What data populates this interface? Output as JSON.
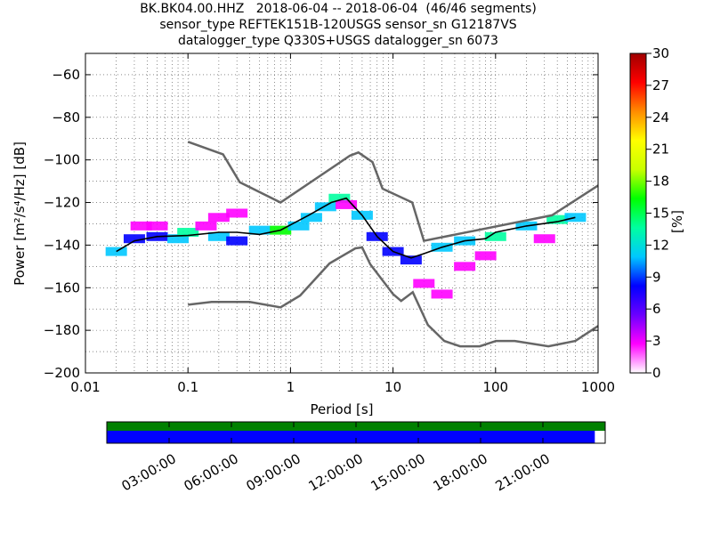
{
  "title": {
    "line1": "BK.BK04.00.HHZ   2018-06-04 -- 2018-06-04  (46/46 segments)",
    "line2": "sensor_type REFTEK151B-120USGS sensor_sn G12187VS",
    "line3": "datalogger_type Q330S+USGS datalogger_sn 6073"
  },
  "chart_data": [
    {
      "type": "heatmap",
      "xlabel": "Period [s]",
      "ylabel": "Power [m²/s⁴/Hz] [dB]",
      "xscale": "log",
      "xlim": [
        0.01,
        1000
      ],
      "ylim": [
        -200,
        -50
      ],
      "x_ticks": [
        "0.01",
        "0.1",
        "1",
        "10",
        "100",
        "1000"
      ],
      "y_ticks": [
        "−60",
        "−80",
        "−100",
        "−120",
        "−140",
        "−160",
        "−180",
        "−200"
      ],
      "grid": true,
      "colorbar": {
        "label": "[%]",
        "range": [
          0,
          30
        ],
        "ticks": [
          "0",
          "3",
          "6",
          "9",
          "12",
          "15",
          "18",
          "21",
          "24",
          "27",
          "30"
        ],
        "colors": [
          "#ffffff",
          "#ff00ff",
          "#6a00ff",
          "#0000ff",
          "#00c8ff",
          "#00ffa0",
          "#00ff00",
          "#c8ff00",
          "#ffff00",
          "#ff8c00",
          "#ff0000",
          "#a00000"
        ]
      },
      "series": [
        {
          "line": "high",
          "period": [
            0.1,
            0.22,
            0.32,
            0.8,
            3.8,
            4.6,
            6.3,
            7.9,
            15.4,
            20,
            354.8,
            10000
          ],
          "power_db": [
            -91.5,
            -97.4,
            -110.5,
            -120,
            -98,
            -96.5,
            -101,
            -113.5,
            -120,
            -138,
            -126,
            -112
          ]
        },
        {
          "line": "low",
          "period": [
            0.1,
            0.17,
            0.4,
            0.8,
            1.24,
            2.4,
            4.3,
            5,
            6,
            10,
            12,
            15.6,
            21.9,
            31.6,
            45,
            70,
            101,
            154,
            328,
            600,
            1000
          ],
          "power_db": [
            -168,
            -166.7,
            -166.7,
            -169.2,
            -163.7,
            -148.6,
            -141.5,
            -141.1,
            -149,
            -163,
            -166.2,
            -162.1,
            -177.5,
            -185,
            -187.5,
            -187.5,
            -185,
            -185,
            -187.5,
            -185,
            -178
          ]
        },
        {
          "line": "mode",
          "period": [
            0.02,
            0.03,
            0.05,
            0.1,
            0.2,
            0.3,
            0.5,
            0.8,
            1.5,
            2.5,
            3.5,
            5,
            7,
            10,
            15,
            20,
            30,
            50,
            80,
            100,
            200,
            400,
            600
          ],
          "power_db": [
            -143,
            -138,
            -136,
            -135.5,
            -134,
            -134,
            -135,
            -133,
            -126,
            -120,
            -118,
            -126,
            -136,
            -143,
            -146,
            -144,
            -141,
            -138,
            -137,
            -134,
            -131,
            -129,
            -127
          ]
        }
      ],
      "probability_density": [
        {
          "period": 0.02,
          "power_db": -143,
          "pct": 12
        },
        {
          "period": 0.03,
          "power_db": -137,
          "pct": 9
        },
        {
          "period": 0.035,
          "power_db": -131,
          "pct": 2
        },
        {
          "period": 0.05,
          "power_db": -136,
          "pct": 8
        },
        {
          "period": 0.05,
          "power_db": -131,
          "pct": 3
        },
        {
          "period": 0.08,
          "power_db": -137,
          "pct": 10
        },
        {
          "period": 0.1,
          "power_db": -134,
          "pct": 13
        },
        {
          "period": 0.15,
          "power_db": -131,
          "pct": 3
        },
        {
          "period": 0.2,
          "power_db": -127,
          "pct": 3
        },
        {
          "period": 0.2,
          "power_db": -136,
          "pct": 10
        },
        {
          "period": 0.3,
          "power_db": -125,
          "pct": 2
        },
        {
          "period": 0.3,
          "power_db": -138,
          "pct": 8
        },
        {
          "period": 0.5,
          "power_db": -133,
          "pct": 12
        },
        {
          "period": 0.8,
          "power_db": -133,
          "pct": 16
        },
        {
          "period": 1.2,
          "power_db": -131,
          "pct": 10
        },
        {
          "period": 1.6,
          "power_db": -127,
          "pct": 12
        },
        {
          "period": 2.2,
          "power_db": -122,
          "pct": 10
        },
        {
          "period": 3,
          "power_db": -118,
          "pct": 13
        },
        {
          "period": 3.5,
          "power_db": -121,
          "pct": 4
        },
        {
          "period": 5,
          "power_db": -126,
          "pct": 10
        },
        {
          "period": 7,
          "power_db": -136,
          "pct": 9
        },
        {
          "period": 10,
          "power_db": -143,
          "pct": 9
        },
        {
          "period": 15,
          "power_db": -147,
          "pct": 7
        },
        {
          "period": 20,
          "power_db": -158,
          "pct": 2
        },
        {
          "period": 30,
          "power_db": -163,
          "pct": 2
        },
        {
          "period": 30,
          "power_db": -141,
          "pct": 10
        },
        {
          "period": 50,
          "power_db": -150,
          "pct": 2
        },
        {
          "period": 50,
          "power_db": -138,
          "pct": 12
        },
        {
          "period": 80,
          "power_db": -145,
          "pct": 2
        },
        {
          "period": 100,
          "power_db": -136,
          "pct": 13
        },
        {
          "period": 200,
          "power_db": -131,
          "pct": 12
        },
        {
          "period": 300,
          "power_db": -137,
          "pct": 2
        },
        {
          "period": 400,
          "power_db": -128,
          "pct": 13
        },
        {
          "period": 600,
          "power_db": -127,
          "pct": 12
        }
      ]
    },
    {
      "type": "bar",
      "role": "timeline",
      "x_ticks": [
        "03:00:00",
        "06:00:00",
        "09:00:00",
        "12:00:00",
        "15:00:00",
        "18:00:00",
        "21:00:00"
      ],
      "xlim_hours": [
        0,
        24
      ],
      "tick_hours": [
        3,
        6,
        9,
        12,
        15,
        18,
        21
      ],
      "tracks": [
        {
          "color": "#008000",
          "start_hour": 0,
          "end_hour": 24
        },
        {
          "color": "#0000ff",
          "start_hour": 0,
          "end_hour": 23.5
        }
      ]
    }
  ]
}
